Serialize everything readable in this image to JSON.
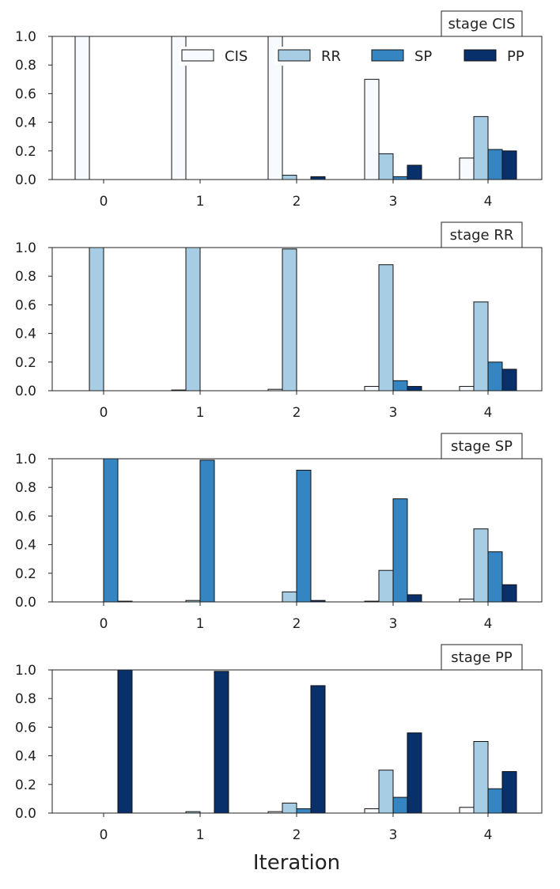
{
  "chart_data": {
    "type": "bar",
    "xlabel": "Iteration",
    "categories": [
      "0",
      "1",
      "2",
      "3",
      "4"
    ],
    "ylim": [
      0,
      1.0
    ],
    "yticks": [
      "0.0",
      "0.2",
      "0.4",
      "0.6",
      "0.8",
      "1.0"
    ],
    "legend": {
      "placement": "top-right of first panel",
      "entries": [
        "CIS",
        "RR",
        "SP",
        "PP"
      ]
    },
    "colors": {
      "CIS": "#f7fbff",
      "RR": "#a6cde3",
      "SP": "#3585c2",
      "PP": "#08306b"
    },
    "panels": [
      {
        "title": "stage CIS",
        "series": [
          {
            "name": "CIS",
            "values": [
              1.0,
              1.0,
              1.0,
              0.7,
              0.15
            ]
          },
          {
            "name": "RR",
            "values": [
              0.0,
              0.0,
              0.03,
              0.18,
              0.44
            ]
          },
          {
            "name": "SP",
            "values": [
              0.0,
              0.0,
              0.0,
              0.02,
              0.21
            ]
          },
          {
            "name": "PP",
            "values": [
              0.0,
              0.0,
              0.02,
              0.1,
              0.2
            ]
          }
        ]
      },
      {
        "title": "stage RR",
        "series": [
          {
            "name": "CIS",
            "values": [
              0.0,
              0.005,
              0.01,
              0.03,
              0.03
            ]
          },
          {
            "name": "RR",
            "values": [
              1.0,
              1.0,
              0.99,
              0.88,
              0.62
            ]
          },
          {
            "name": "SP",
            "values": [
              0.0,
              0.0,
              0.0,
              0.07,
              0.2
            ]
          },
          {
            "name": "PP",
            "values": [
              0.0,
              0.0,
              0.0,
              0.03,
              0.15
            ]
          }
        ]
      },
      {
        "title": "stage SP",
        "series": [
          {
            "name": "CIS",
            "values": [
              0.0,
              0.0,
              0.0,
              0.005,
              0.02
            ]
          },
          {
            "name": "RR",
            "values": [
              0.0,
              0.01,
              0.07,
              0.22,
              0.51
            ]
          },
          {
            "name": "SP",
            "values": [
              1.0,
              0.99,
              0.92,
              0.72,
              0.35
            ]
          },
          {
            "name": "PP",
            "values": [
              0.005,
              0.0,
              0.01,
              0.05,
              0.12
            ]
          }
        ]
      },
      {
        "title": "stage PP",
        "series": [
          {
            "name": "CIS",
            "values": [
              0.0,
              0.0,
              0.01,
              0.03,
              0.04
            ]
          },
          {
            "name": "RR",
            "values": [
              0.0,
              0.01,
              0.07,
              0.3,
              0.5
            ]
          },
          {
            "name": "SP",
            "values": [
              0.0,
              0.0,
              0.03,
              0.11,
              0.17
            ]
          },
          {
            "name": "PP",
            "values": [
              1.0,
              0.99,
              0.89,
              0.56,
              0.29
            ]
          }
        ]
      }
    ]
  }
}
